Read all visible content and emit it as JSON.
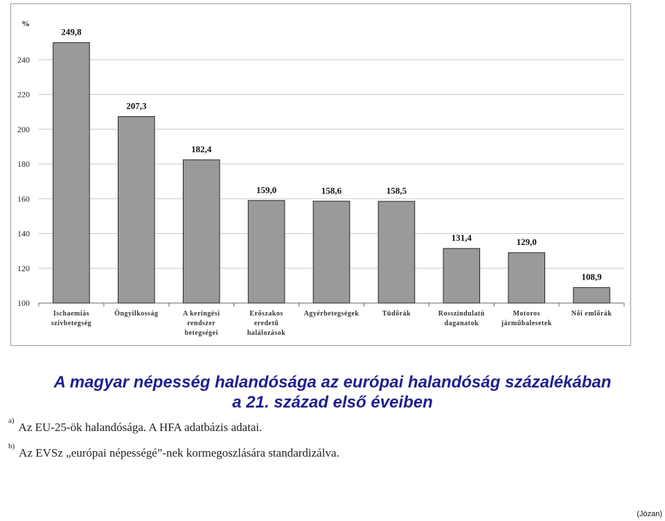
{
  "chart_data": {
    "type": "bar",
    "categories": [
      [
        "Ischaemiás",
        "szívbetegség"
      ],
      [
        "Öngyilkosság"
      ],
      [
        "A keringési",
        "rendszer",
        "betegségei"
      ],
      [
        "Erőszakos",
        "eredetű",
        "halálozások"
      ],
      [
        "Agyérbetegségek"
      ],
      [
        "Tüdőrák"
      ],
      [
        "Rosszindulatú",
        "daganatok"
      ],
      [
        "Motoros",
        "járműbalesetek"
      ],
      [
        "Női emlőrák"
      ]
    ],
    "values": [
      249.8,
      207.3,
      182.4,
      159.0,
      158.6,
      158.5,
      131.4,
      129.0,
      108.9
    ],
    "value_labels": [
      "249,8",
      "207,3",
      "182,4",
      "159,0",
      "158,6",
      "158,5",
      "131,4",
      "129,0",
      "108,9"
    ],
    "ylabel": "%",
    "ylim": [
      100,
      260
    ],
    "yticks": [
      100,
      120,
      140,
      160,
      180,
      200,
      220,
      240
    ],
    "grid": true,
    "legend": "none"
  },
  "title_line1": "A magyar népesség halandósága az európai halandóság százalékában",
  "title_line2": "a 21. század első éveiben",
  "notes": [
    {
      "mark": "a)",
      "text": "Az EU-25-ök halandósága. A HFA adatbázis adatai."
    },
    {
      "mark": "b)",
      "text": "Az EVSz „európai népességé”-nek kormegoszlására standardizálva."
    }
  ],
  "source": "(Józan)",
  "colors": {
    "bar": "#9a9a9a",
    "title": "#1f1f8f"
  }
}
